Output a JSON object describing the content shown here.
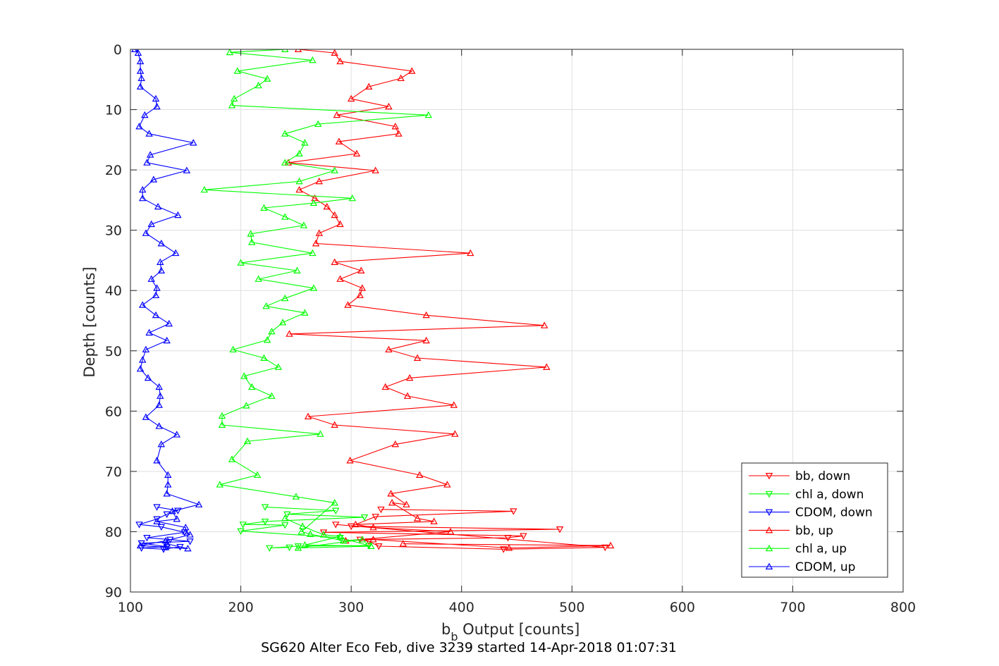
{
  "chart_data": {
    "type": "line",
    "title": "SG620 Alter Eco Feb, dive 3239 started 14-Apr-2018 01:07:31",
    "xlabel_main": "b",
    "xlabel_sub": "b",
    "xlabel_rest": " Output [counts]",
    "ylabel": "Depth [counts]",
    "xlim": [
      100,
      800
    ],
    "ylim": [
      0,
      90
    ],
    "y_reversed": true,
    "grid": true,
    "legend_position": "bottom-right",
    "xticks": [
      "100",
      "200",
      "300",
      "400",
      "500",
      "600",
      "700",
      "800"
    ],
    "yticks": [
      "0",
      "10",
      "20",
      "30",
      "40",
      "50",
      "60",
      "70",
      "80",
      "90"
    ],
    "series": [
      {
        "name": "bb, down",
        "color": "#ff0000",
        "marker": "triangle-down",
        "points": [
          [
            286,
            78.8
          ],
          [
            530,
            82.6
          ],
          [
            438,
            82.9
          ],
          [
            325,
            82.4
          ],
          [
            316,
            81.6
          ],
          [
            308,
            81.3
          ],
          [
            442,
            81.0
          ],
          [
            456,
            80.7
          ],
          [
            275,
            80.1
          ],
          [
            489,
            79.6
          ],
          [
            300,
            79.1
          ],
          [
            322,
            77.5
          ],
          [
            447,
            76.6
          ],
          [
            327,
            76.3
          ]
        ]
      },
      {
        "name": "chl a, down",
        "color": "#00ff00",
        "marker": "triangle-down",
        "points": [
          [
            222,
            75.9
          ],
          [
            286,
            76.5
          ],
          [
            242,
            77.1
          ],
          [
            312,
            77.6
          ],
          [
            222,
            78.3
          ],
          [
            202,
            78.8
          ],
          [
            240,
            78.9
          ],
          [
            200,
            79.9
          ],
          [
            290,
            81.0
          ],
          [
            316,
            82.3
          ],
          [
            252,
            82.4
          ],
          [
            226,
            82.7
          ],
          [
            244,
            82.6
          ]
        ]
      },
      {
        "name": "CDOM, down",
        "color": "#0000ff",
        "marker": "triangle-down",
        "points": [
          [
            124,
            75.9
          ],
          [
            143,
            76.5
          ],
          [
            133,
            77.1
          ],
          [
            124,
            77.9
          ],
          [
            108,
            78.8
          ],
          [
            128,
            79.2
          ],
          [
            149,
            80.1
          ],
          [
            115,
            81.0
          ],
          [
            136,
            81.3
          ],
          [
            154,
            81.6
          ],
          [
            110,
            81.9
          ],
          [
            133,
            82.5
          ],
          [
            110,
            82.7
          ],
          [
            130,
            82.9
          ],
          [
            145,
            82.5
          ]
        ]
      },
      {
        "name": "bb, up",
        "color": "#ff0000",
        "marker": "triangle-up",
        "points": [
          [
            252,
            0
          ],
          [
            285,
            0.6
          ],
          [
            290,
            2.0
          ],
          [
            355,
            3.6
          ],
          [
            345,
            4.8
          ],
          [
            316,
            6.2
          ],
          [
            300,
            8.2
          ],
          [
            334,
            9.5
          ],
          [
            287,
            10.9
          ],
          [
            340,
            12.8
          ],
          [
            343,
            14.0
          ],
          [
            289,
            15.3
          ],
          [
            305,
            17.3
          ],
          [
            243,
            18.8
          ],
          [
            322,
            20.1
          ],
          [
            271,
            21.9
          ],
          [
            253,
            23.3
          ],
          [
            267,
            24.7
          ],
          [
            278,
            26.1
          ],
          [
            285,
            27.5
          ],
          [
            290,
            29.0
          ],
          [
            271,
            30.5
          ],
          [
            268,
            32.2
          ],
          [
            408,
            33.8
          ],
          [
            285,
            35.3
          ],
          [
            309,
            36.7
          ],
          [
            290,
            38.1
          ],
          [
            310,
            39.6
          ],
          [
            308,
            40.8
          ],
          [
            297,
            42.4
          ],
          [
            368,
            44.1
          ],
          [
            475,
            45.8
          ],
          [
            244,
            47.2
          ],
          [
            368,
            48.3
          ],
          [
            334,
            49.8
          ],
          [
            360,
            51.2
          ],
          [
            477,
            52.7
          ],
          [
            353,
            54.5
          ],
          [
            331,
            56.0
          ],
          [
            351,
            57.5
          ],
          [
            393,
            59.0
          ],
          [
            261,
            60.9
          ],
          [
            285,
            62.3
          ],
          [
            394,
            63.8
          ],
          [
            340,
            65.5
          ],
          [
            299,
            68.2
          ],
          [
            362,
            70.6
          ],
          [
            387,
            72.2
          ],
          [
            336,
            73.7
          ],
          [
            350,
            75.5
          ],
          [
            337,
            75.2
          ],
          [
            360,
            77.8
          ],
          [
            375,
            78.3
          ],
          [
            304,
            78.8
          ],
          [
            320,
            79.3
          ],
          [
            390,
            80.0
          ],
          [
            295,
            81.5
          ],
          [
            320,
            81.3
          ],
          [
            443,
            82.7
          ],
          [
            535,
            82.3
          ],
          [
            347,
            82.0
          ]
        ]
      },
      {
        "name": "chl a, up",
        "color": "#00ff00",
        "marker": "triangle-up",
        "points": [
          [
            240,
            0
          ],
          [
            190,
            0.5
          ],
          [
            265,
            1.8
          ],
          [
            197,
            3.6
          ],
          [
            224,
            4.9
          ],
          [
            216,
            6.0
          ],
          [
            194,
            8.2
          ],
          [
            192,
            9.3
          ],
          [
            370,
            10.9
          ],
          [
            270,
            12.4
          ],
          [
            240,
            14.0
          ],
          [
            258,
            15.5
          ],
          [
            253,
            17.3
          ],
          [
            240,
            18.8
          ],
          [
            285,
            20.1
          ],
          [
            253,
            21.9
          ],
          [
            167,
            23.3
          ],
          [
            301,
            24.7
          ],
          [
            266,
            25.5
          ],
          [
            221,
            26.3
          ],
          [
            240,
            27.8
          ],
          [
            257,
            29.2
          ],
          [
            209,
            30.6
          ],
          [
            210,
            32.0
          ],
          [
            265,
            33.8
          ],
          [
            200,
            35.4
          ],
          [
            251,
            36.7
          ],
          [
            216,
            38.1
          ],
          [
            266,
            39.6
          ],
          [
            240,
            41.3
          ],
          [
            223,
            42.6
          ],
          [
            258,
            43.7
          ],
          [
            238,
            45.3
          ],
          [
            228,
            46.8
          ],
          [
            224,
            48.2
          ],
          [
            193,
            49.8
          ],
          [
            221,
            51.2
          ],
          [
            234,
            52.7
          ],
          [
            203,
            54.2
          ],
          [
            210,
            56.0
          ],
          [
            228,
            57.5
          ],
          [
            205,
            59.1
          ],
          [
            183,
            60.8
          ],
          [
            183,
            62.3
          ],
          [
            272,
            63.8
          ],
          [
            206,
            65.0
          ],
          [
            192,
            68.0
          ],
          [
            215,
            70.6
          ],
          [
            181,
            72.2
          ],
          [
            250,
            74.2
          ],
          [
            285,
            75.2
          ],
          [
            255,
            80.0
          ],
          [
            263,
            80.4
          ],
          [
            293,
            81.5
          ],
          [
            310,
            81.3
          ],
          [
            252,
            82.7
          ],
          [
            318,
            82.4
          ],
          [
            258,
            82.2
          ],
          [
            290,
            80.8
          ],
          [
            275,
            80.5
          ],
          [
            256,
            79.1
          ],
          [
            240,
            77.8
          ]
        ]
      },
      {
        "name": "CDOM, up",
        "color": "#0000ff",
        "marker": "triangle-up",
        "points": [
          [
            104,
            0
          ],
          [
            107,
            0.6
          ],
          [
            109,
            2.0
          ],
          [
            109,
            3.6
          ],
          [
            110,
            4.8
          ],
          [
            109,
            6.2
          ],
          [
            123,
            8.2
          ],
          [
            124,
            9.5
          ],
          [
            113,
            10.9
          ],
          [
            108,
            12.8
          ],
          [
            117,
            14.0
          ],
          [
            157,
            15.5
          ],
          [
            118,
            17.5
          ],
          [
            115,
            18.8
          ],
          [
            151,
            20.1
          ],
          [
            121,
            21.6
          ],
          [
            111,
            23.3
          ],
          [
            111,
            24.7
          ],
          [
            125,
            26.1
          ],
          [
            143,
            27.5
          ],
          [
            119,
            29.0
          ],
          [
            114,
            30.5
          ],
          [
            128,
            32.2
          ],
          [
            141,
            33.8
          ],
          [
            127,
            35.3
          ],
          [
            128,
            36.7
          ],
          [
            119,
            38.1
          ],
          [
            124,
            39.6
          ],
          [
            123,
            40.8
          ],
          [
            111,
            42.4
          ],
          [
            123,
            44.1
          ],
          [
            135,
            45.5
          ],
          [
            117,
            47.0
          ],
          [
            133,
            48.3
          ],
          [
            114,
            49.8
          ],
          [
            111,
            51.5
          ],
          [
            109,
            53.0
          ],
          [
            116,
            54.5
          ],
          [
            126,
            56.0
          ],
          [
            127,
            57.5
          ],
          [
            126,
            59.0
          ],
          [
            114,
            61.0
          ],
          [
            126,
            62.5
          ],
          [
            142,
            63.9
          ],
          [
            128,
            65.5
          ],
          [
            124,
            68.2
          ],
          [
            134,
            70.6
          ],
          [
            134,
            72.2
          ],
          [
            133,
            73.7
          ],
          [
            162,
            75.5
          ],
          [
            138,
            76.6
          ],
          [
            142,
            77.9
          ],
          [
            124,
            78.3
          ],
          [
            150,
            79.3
          ],
          [
            150,
            80.0
          ],
          [
            154,
            80.5
          ],
          [
            132,
            81.5
          ],
          [
            109,
            82.3
          ],
          [
            132,
            82.6
          ],
          [
            152,
            82.8
          ],
          [
            133,
            82.0
          ]
        ]
      }
    ]
  }
}
